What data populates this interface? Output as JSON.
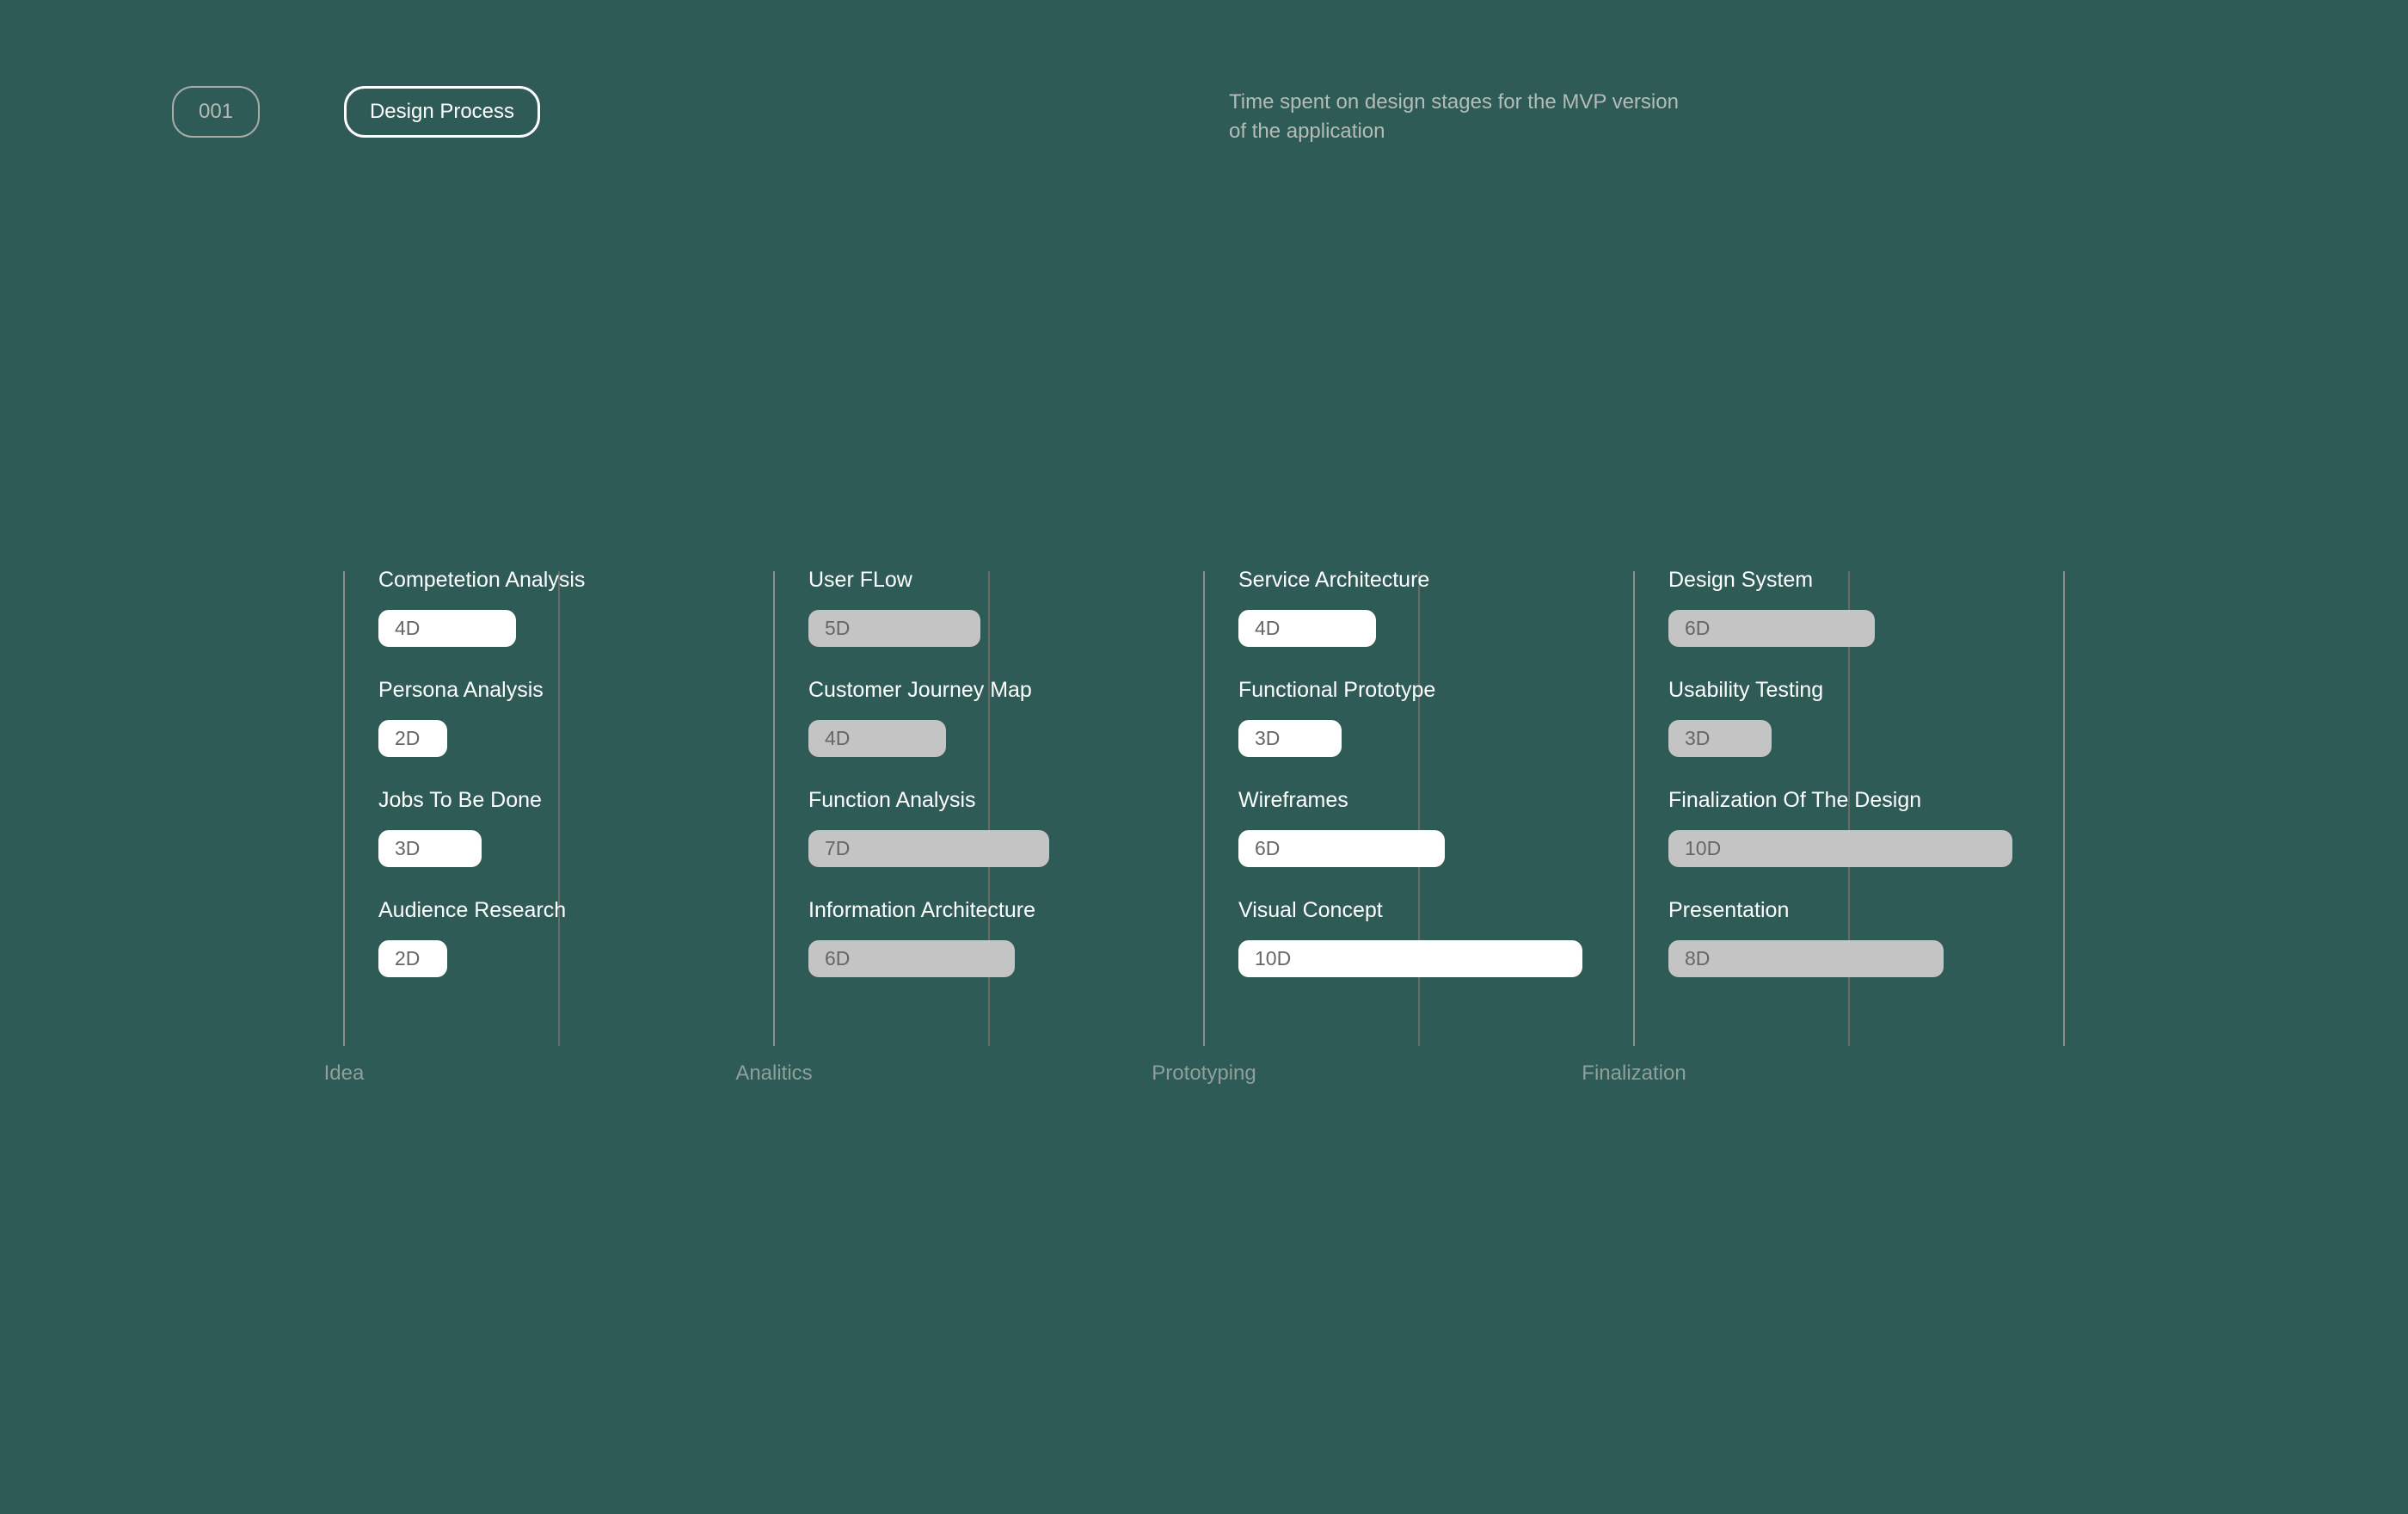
{
  "header": {
    "number": "001",
    "title": "Design Process",
    "subtitle_line1": "Time spent on design stages for the MVP version",
    "subtitle_line2": "of the application"
  },
  "chart_data": {
    "type": "bar",
    "unit": "D",
    "colors": {
      "background": "#2e5b55",
      "bar_white": "#ffffff",
      "bar_gray": "#c4c4c4"
    },
    "stages": [
      {
        "name": "Idea",
        "bar_color": "#ffffff",
        "tasks": [
          {
            "label": "Competetion Analysis",
            "days": 4,
            "text": "4D"
          },
          {
            "label": "Persona Analysis",
            "days": 2,
            "text": "2D"
          },
          {
            "label": "Jobs To Be Done",
            "days": 3,
            "text": "3D"
          },
          {
            "label": "Audience Research",
            "days": 2,
            "text": "2D"
          }
        ]
      },
      {
        "name": "Analitics",
        "bar_color": "#c4c4c4",
        "tasks": [
          {
            "label": "User FLow",
            "days": 5,
            "text": "5D"
          },
          {
            "label": "Customer Journey Map",
            "days": 4,
            "text": "4D"
          },
          {
            "label": "Function Analysis",
            "days": 7,
            "text": "7D"
          },
          {
            "label": "Information Architecture",
            "days": 6,
            "text": "6D"
          }
        ]
      },
      {
        "name": "Prototyping",
        "bar_color": "#ffffff",
        "tasks": [
          {
            "label": "Service Architecture",
            "days": 4,
            "text": "4D"
          },
          {
            "label": "Functional Prototype",
            "days": 3,
            "text": "3D"
          },
          {
            "label": "Wireframes",
            "days": 6,
            "text": "6D"
          },
          {
            "label": "Visual Concept",
            "days": 10,
            "text": "10D"
          }
        ]
      },
      {
        "name": "Finalization",
        "bar_color": "#c4c4c4",
        "tasks": [
          {
            "label": "Design System",
            "days": 6,
            "text": "6D"
          },
          {
            "label": "Usability Testing",
            "days": 3,
            "text": "3D"
          },
          {
            "label": "Finalization Of The Design",
            "days": 10,
            "text": "10D"
          },
          {
            "label": "Presentation",
            "days": 8,
            "text": "8D"
          }
        ]
      }
    ]
  }
}
